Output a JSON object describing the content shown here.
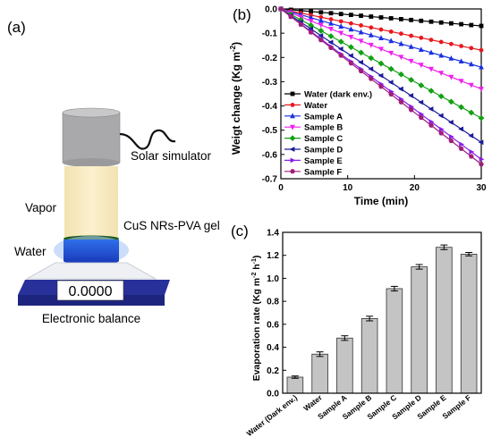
{
  "panel_a": {
    "label": "(a)",
    "solar_simulator": "Solar simulator",
    "vapor": "Vapor",
    "gel": "CuS NRs-PVA gel",
    "water": "Water",
    "balance_reading": "0.0000",
    "balance": "Electronic balance"
  },
  "panel_b": {
    "label": "(b)"
  },
  "panel_c": {
    "label": "(c)"
  },
  "colors": {
    "water_dark": "#000000",
    "water": "#e8181e",
    "sample_a": "#1a2fe0",
    "sample_b": "#ee20ee",
    "sample_c": "#14a014",
    "sample_d": "#1a1a9c",
    "sample_e": "#8a1ee6",
    "sample_f": "#a01e78",
    "bar": "#c4c4c4"
  },
  "chart_data": [
    {
      "type": "line",
      "xlabel": "Time (min)",
      "ylabel": "Weigt change (Kg m",
      "ylabel_sup": "-2",
      "ylabel_tail": ")",
      "xlim": [
        0,
        30
      ],
      "ylim": [
        -0.7,
        0.0
      ],
      "xticks": [
        "0",
        "10",
        "20",
        "30"
      ],
      "yticks": [
        "0.0",
        "-0.1",
        "-0.2",
        "-0.3",
        "-0.4",
        "-0.5",
        "-0.6",
        "-0.7"
      ],
      "legend_position": "bottom-left",
      "x": [
        0,
        1.5,
        3,
        4.5,
        6,
        7.5,
        9,
        10.5,
        12,
        13.5,
        15,
        16.5,
        18,
        19.5,
        21,
        22.5,
        24,
        25.5,
        27,
        28.5,
        30
      ],
      "series": [
        {
          "name": "Water (dark env.)",
          "end_value": -0.07,
          "marker": "square",
          "color_key": "water_dark"
        },
        {
          "name": "Water",
          "end_value": -0.17,
          "marker": "circle",
          "color_key": "water"
        },
        {
          "name": "Sample A",
          "end_value": -0.24,
          "marker": "triangle-up",
          "color_key": "sample_a"
        },
        {
          "name": "Sample B",
          "end_value": -0.33,
          "marker": "triangle-down",
          "color_key": "sample_b"
        },
        {
          "name": "Sample C",
          "end_value": -0.45,
          "marker": "diamond",
          "color_key": "sample_c"
        },
        {
          "name": "Sample D",
          "end_value": -0.55,
          "marker": "triangle-left",
          "color_key": "sample_d"
        },
        {
          "name": "Sample E",
          "end_value": -0.62,
          "marker": "triangle-right",
          "color_key": "sample_e"
        },
        {
          "name": "Sample F",
          "end_value": -0.64,
          "marker": "hexagon",
          "color_key": "sample_f"
        }
      ]
    },
    {
      "type": "bar",
      "ylabel": "Evaporation rate (Kg m",
      "ylabel_sup1": "-2",
      "ylabel_mid": " h",
      "ylabel_sup2": "-1",
      "ylabel_tail": ")",
      "ylim": [
        0.0,
        1.4
      ],
      "yticks": [
        "0.0",
        "0.2",
        "0.4",
        "0.6",
        "0.8",
        "1.0",
        "1.2",
        "1.4"
      ],
      "categories": [
        "Water (Dark env.)",
        "Water",
        "Sample A",
        "Sample B",
        "Sample C",
        "Sample D",
        "Sample E",
        "Sample F"
      ],
      "values": [
        0.14,
        0.34,
        0.48,
        0.65,
        0.91,
        1.1,
        1.27,
        1.21
      ],
      "errors": [
        0.01,
        0.02,
        0.02,
        0.02,
        0.02,
        0.02,
        0.02,
        0.015
      ]
    }
  ]
}
